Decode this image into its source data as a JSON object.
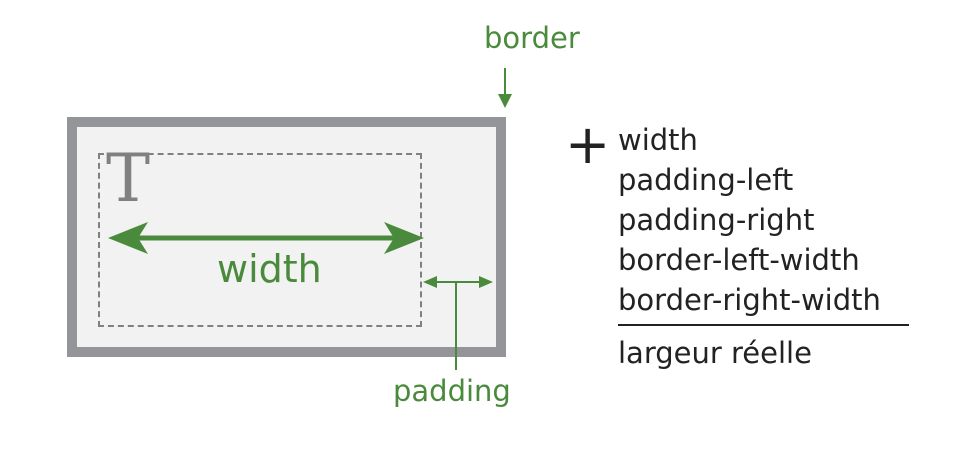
{
  "labels": {
    "border": "border",
    "padding": "padding",
    "width": "width",
    "content_letter": "T"
  },
  "formula": {
    "operator": "+",
    "terms": [
      "width",
      "padding-left",
      "padding-right",
      "border-left-width",
      "border-right-width"
    ],
    "result": "largeur réelle"
  },
  "colors": {
    "accent_green": "#4a8a3c",
    "border_gray": "#939598",
    "fill_gray": "#f2f2f2",
    "dashed_gray": "#808083",
    "text_dark": "#222222"
  }
}
